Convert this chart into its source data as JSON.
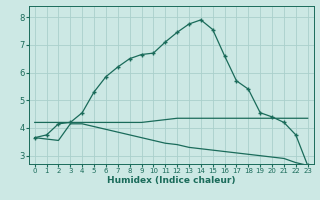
{
  "xlabel": "Humidex (Indice chaleur)",
  "bg_color": "#cce8e4",
  "grid_color": "#aad0cc",
  "line_color": "#1a6b5a",
  "xlim": [
    -0.5,
    23.5
  ],
  "ylim": [
    2.7,
    8.4
  ],
  "xticks": [
    0,
    1,
    2,
    3,
    4,
    5,
    6,
    7,
    8,
    9,
    10,
    11,
    12,
    13,
    14,
    15,
    16,
    17,
    18,
    19,
    20,
    21,
    22,
    23
  ],
  "yticks": [
    3,
    4,
    5,
    6,
    7,
    8
  ],
  "line1_x": [
    0,
    1,
    2,
    3,
    4,
    5,
    6,
    7,
    8,
    9,
    10,
    11,
    12,
    13,
    14,
    15,
    16,
    17,
    18,
    19,
    20,
    21,
    22,
    23
  ],
  "line1_y": [
    3.65,
    3.75,
    4.15,
    4.2,
    4.55,
    5.3,
    5.85,
    6.2,
    6.5,
    6.65,
    6.7,
    7.1,
    7.45,
    7.75,
    7.9,
    7.55,
    6.6,
    5.7,
    5.4,
    4.55,
    4.4,
    4.2,
    3.75,
    2.65
  ],
  "line2_x": [
    0,
    1,
    2,
    3,
    4,
    5,
    6,
    7,
    8,
    9,
    10,
    11,
    12,
    13,
    14,
    15,
    16,
    17,
    18,
    19,
    20,
    21,
    22,
    23
  ],
  "line2_y": [
    4.2,
    4.2,
    4.2,
    4.2,
    4.2,
    4.2,
    4.2,
    4.2,
    4.2,
    4.2,
    4.25,
    4.3,
    4.35,
    4.35,
    4.35,
    4.35,
    4.35,
    4.35,
    4.35,
    4.35,
    4.35,
    4.35,
    4.35,
    4.35
  ],
  "line3_x": [
    0,
    1,
    2,
    3,
    4,
    5,
    6,
    7,
    8,
    9,
    10,
    11,
    12,
    13,
    14,
    15,
    16,
    17,
    18,
    19,
    20,
    21,
    22,
    23
  ],
  "line3_y": [
    3.65,
    3.6,
    3.55,
    4.15,
    4.15,
    4.05,
    3.95,
    3.85,
    3.75,
    3.65,
    3.55,
    3.45,
    3.4,
    3.3,
    3.25,
    3.2,
    3.15,
    3.1,
    3.05,
    3.0,
    2.95,
    2.9,
    2.75,
    2.65
  ],
  "marker": "+"
}
